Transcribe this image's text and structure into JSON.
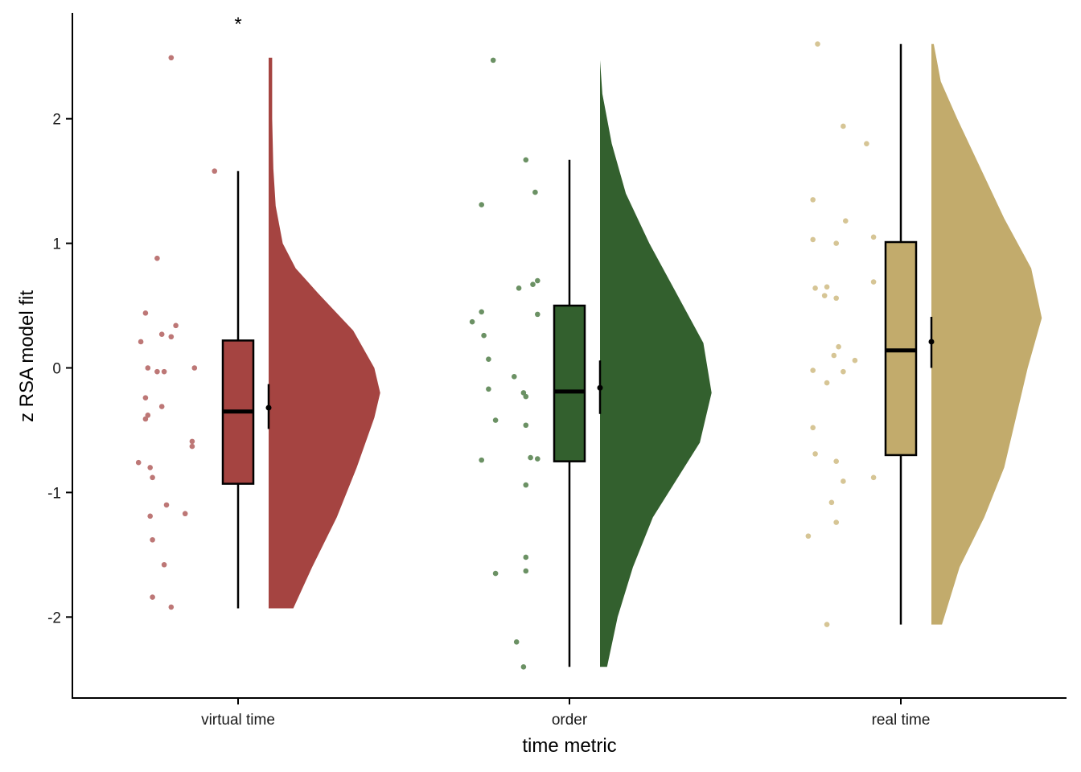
{
  "chart_data": {
    "type": "raincloud",
    "title": "",
    "xlabel": "time metric",
    "ylabel": "z RSA model fit",
    "ylim": [
      -2.65,
      2.85
    ],
    "yticks": [
      -2,
      -1,
      0,
      1,
      2
    ],
    "ytick_labels": [
      "-2",
      "-1",
      "0",
      "1",
      "2"
    ],
    "grid": false,
    "legend": "none",
    "categories": [
      "virtual time",
      "order",
      "real time"
    ],
    "groups": [
      {
        "category": "virtual time",
        "color": "#a54441",
        "point_color": "#bd7776",
        "annotation": "*",
        "box": {
          "whisker_low": -1.93,
          "q1": -0.93,
          "median": -0.35,
          "q3": 0.22,
          "whisker_high": 1.58
        },
        "mean": -0.32,
        "ci": [
          -0.49,
          -0.13
        ],
        "density": [
          [
            -1.93,
            0.21
          ],
          [
            -1.6,
            0.37
          ],
          [
            -1.2,
            0.58
          ],
          [
            -0.8,
            0.75
          ],
          [
            -0.4,
            0.9
          ],
          [
            -0.2,
            0.95
          ],
          [
            0.0,
            0.9
          ],
          [
            0.3,
            0.72
          ],
          [
            0.6,
            0.42
          ],
          [
            0.8,
            0.23
          ],
          [
            1.0,
            0.12
          ],
          [
            1.3,
            0.06
          ],
          [
            1.6,
            0.04
          ],
          [
            2.0,
            0.03
          ],
          [
            2.49,
            0.03
          ]
        ],
        "points": [
          [
            -0.4,
            2.49
          ],
          [
            0.53,
            1.58
          ],
          [
            -0.7,
            0.88
          ],
          [
            -0.95,
            0.44
          ],
          [
            -0.3,
            0.34
          ],
          [
            -0.6,
            0.27
          ],
          [
            -0.4,
            0.25
          ],
          [
            -1.05,
            0.21
          ],
          [
            -0.9,
            0.0
          ],
          [
            -0.7,
            -0.03
          ],
          [
            -0.55,
            -0.03
          ],
          [
            0.1,
            0.0
          ],
          [
            -0.95,
            -0.24
          ],
          [
            -0.6,
            -0.31
          ],
          [
            -0.9,
            -0.38
          ],
          [
            -0.95,
            -0.41
          ],
          [
            0.05,
            -0.59
          ],
          [
            0.05,
            -0.63
          ],
          [
            -1.1,
            -0.76
          ],
          [
            -0.85,
            -0.8
          ],
          [
            -0.8,
            -0.88
          ],
          [
            -0.5,
            -1.1
          ],
          [
            -0.1,
            -1.17
          ],
          [
            -0.85,
            -1.19
          ],
          [
            -0.8,
            -1.38
          ],
          [
            -0.55,
            -1.58
          ],
          [
            -0.8,
            -1.84
          ],
          [
            -0.4,
            -1.92
          ]
        ]
      },
      {
        "category": "order",
        "color": "#33602e",
        "point_color": "#6b9164",
        "annotation": "",
        "box": {
          "whisker_low": -2.4,
          "q1": -0.75,
          "median": -0.19,
          "q3": 0.5,
          "whisker_high": 1.67
        },
        "mean": -0.16,
        "ci": [
          -0.37,
          0.06
        ],
        "density": [
          [
            -2.4,
            0.06
          ],
          [
            -2.0,
            0.15
          ],
          [
            -1.6,
            0.28
          ],
          [
            -1.2,
            0.45
          ],
          [
            -0.9,
            0.65
          ],
          [
            -0.6,
            0.85
          ],
          [
            -0.2,
            0.95
          ],
          [
            0.2,
            0.88
          ],
          [
            0.6,
            0.65
          ],
          [
            1.0,
            0.42
          ],
          [
            1.4,
            0.22
          ],
          [
            1.8,
            0.1
          ],
          [
            2.2,
            0.02
          ],
          [
            2.47,
            0.0
          ]
        ],
        "points": [
          [
            -0.6,
            2.47
          ],
          [
            0.1,
            1.67
          ],
          [
            0.3,
            1.41
          ],
          [
            -0.85,
            1.31
          ],
          [
            0.35,
            0.7
          ],
          [
            0.25,
            0.67
          ],
          [
            -0.05,
            0.64
          ],
          [
            -0.85,
            0.45
          ],
          [
            0.35,
            0.43
          ],
          [
            -1.05,
            0.37
          ],
          [
            -0.8,
            0.26
          ],
          [
            -0.7,
            0.07
          ],
          [
            -0.15,
            -0.07
          ],
          [
            -0.7,
            -0.17
          ],
          [
            0.05,
            -0.2
          ],
          [
            0.1,
            -0.23
          ],
          [
            -0.55,
            -0.42
          ],
          [
            0.1,
            -0.46
          ],
          [
            -0.85,
            -0.74
          ],
          [
            0.2,
            -0.72
          ],
          [
            0.35,
            -0.73
          ],
          [
            0.1,
            -0.94
          ],
          [
            0.1,
            -1.52
          ],
          [
            -0.55,
            -1.65
          ],
          [
            0.1,
            -1.63
          ],
          [
            -0.1,
            -2.2
          ],
          [
            0.05,
            -2.4
          ]
        ]
      },
      {
        "category": "real time",
        "color": "#c2ab6c",
        "point_color": "#d6c595",
        "annotation": "",
        "box": {
          "whisker_low": -2.06,
          "q1": -0.7,
          "median": 0.14,
          "q3": 1.01,
          "whisker_high": 2.6
        },
        "mean": 0.21,
        "ci": [
          0.0,
          0.41
        ],
        "density": [
          [
            -2.06,
            0.09
          ],
          [
            -1.6,
            0.24
          ],
          [
            -1.2,
            0.45
          ],
          [
            -0.8,
            0.62
          ],
          [
            -0.4,
            0.72
          ],
          [
            0.0,
            0.82
          ],
          [
            0.4,
            0.94
          ],
          [
            0.8,
            0.85
          ],
          [
            1.2,
            0.62
          ],
          [
            1.6,
            0.42
          ],
          [
            2.0,
            0.22
          ],
          [
            2.3,
            0.08
          ],
          [
            2.6,
            0.02
          ]
        ],
        "points": [
          [
            -0.75,
            2.6
          ],
          [
            -0.2,
            1.94
          ],
          [
            0.3,
            1.8
          ],
          [
            -0.85,
            1.35
          ],
          [
            0.45,
            1.05
          ],
          [
            -0.85,
            1.03
          ],
          [
            -0.15,
            1.18
          ],
          [
            -0.35,
            1.0
          ],
          [
            0.45,
            0.69
          ],
          [
            -0.8,
            0.64
          ],
          [
            -0.55,
            0.65
          ],
          [
            -0.6,
            0.58
          ],
          [
            -0.35,
            0.56
          ],
          [
            -0.4,
            0.1
          ],
          [
            -0.3,
            0.17
          ],
          [
            0.05,
            0.06
          ],
          [
            -0.85,
            -0.02
          ],
          [
            -0.2,
            -0.03
          ],
          [
            -0.55,
            -0.12
          ],
          [
            -0.85,
            -0.48
          ],
          [
            -0.8,
            -0.69
          ],
          [
            -0.35,
            -0.75
          ],
          [
            -0.2,
            -0.91
          ],
          [
            -0.45,
            -1.08
          ],
          [
            0.45,
            -0.88
          ],
          [
            -0.35,
            -1.24
          ],
          [
            -0.95,
            -1.35
          ],
          [
            -0.55,
            -2.06
          ]
        ]
      }
    ]
  }
}
